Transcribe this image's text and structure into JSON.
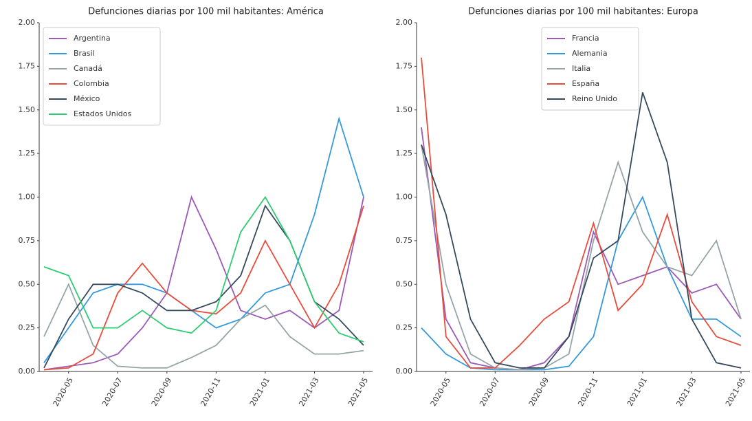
{
  "chart_data": [
    {
      "type": "line",
      "title": "Defunciones diarias por 100 mil habitantes: América",
      "legend": "upper left",
      "x": [
        "2020-04",
        "2020-05",
        "2020-06",
        "2020-07",
        "2020-08",
        "2020-09",
        "2020-10",
        "2020-11",
        "2020-12",
        "2021-01",
        "2021-02",
        "2021-03",
        "2021-04",
        "2021-05"
      ],
      "xticks": [
        "2020-05",
        "2020-07",
        "2020-09",
        "2020-11",
        "2021-01",
        "2021-03",
        "2021-05"
      ],
      "ylim": [
        0,
        2
      ],
      "yticks": [
        {
          "value": 0,
          "label": "0.00"
        },
        {
          "value": 0.25,
          "label": "0.25"
        },
        {
          "value": 0.5,
          "label": "0.50"
        },
        {
          "value": 0.75,
          "label": "0.75"
        },
        {
          "value": 1,
          "label": "1.00"
        },
        {
          "value": 1.25,
          "label": "1.25"
        },
        {
          "value": 1.5,
          "label": "1.50"
        },
        {
          "value": 1.75,
          "label": "1.75"
        },
        {
          "value": 2,
          "label": "2.00"
        }
      ],
      "series": [
        {
          "name": "Argentina",
          "color": "#9b59b6",
          "values": [
            0.01,
            0.03,
            0.05,
            0.1,
            0.25,
            0.45,
            1.0,
            0.7,
            0.35,
            0.3,
            0.35,
            0.25,
            0.35,
            1.0
          ]
        },
        {
          "name": "Brasil",
          "color": "#3498db",
          "values": [
            0.05,
            0.25,
            0.45,
            0.5,
            0.5,
            0.45,
            0.35,
            0.25,
            0.3,
            0.45,
            0.5,
            0.9,
            1.45,
            1.0
          ]
        },
        {
          "name": "Canadá",
          "color": "#95a5a6",
          "values": [
            0.2,
            0.5,
            0.15,
            0.03,
            0.02,
            0.02,
            0.08,
            0.15,
            0.3,
            0.38,
            0.2,
            0.1,
            0.1,
            0.12
          ]
        },
        {
          "name": "Colombia",
          "color": "#e74c3c",
          "values": [
            0.01,
            0.02,
            0.1,
            0.45,
            0.62,
            0.45,
            0.35,
            0.33,
            0.45,
            0.75,
            0.5,
            0.25,
            0.5,
            0.95
          ]
        },
        {
          "name": "México",
          "color": "#34495e",
          "values": [
            0.02,
            0.3,
            0.5,
            0.5,
            0.45,
            0.35,
            0.35,
            0.4,
            0.55,
            0.95,
            0.75,
            0.4,
            0.3,
            0.15
          ]
        },
        {
          "name": "Estados Unidos",
          "color": "#2ecc71",
          "values": [
            0.6,
            0.55,
            0.25,
            0.25,
            0.35,
            0.25,
            0.22,
            0.35,
            0.8,
            1.0,
            0.75,
            0.4,
            0.22,
            0.17
          ]
        }
      ]
    },
    {
      "type": "line",
      "title": "Defunciones diarias por 100 mil habitantes: Europa",
      "legend": "upper center",
      "x": [
        "2020-04",
        "2020-05",
        "2020-06",
        "2020-07",
        "2020-08",
        "2020-09",
        "2020-10",
        "2020-11",
        "2020-12",
        "2021-01",
        "2021-02",
        "2021-03",
        "2021-04",
        "2021-05"
      ],
      "xticks": [
        "2020-05",
        "2020-07",
        "2020-09",
        "2020-11",
        "2021-01",
        "2021-03",
        "2021-05"
      ],
      "ylim": [
        0,
        2
      ],
      "yticks": [
        {
          "value": 0,
          "label": "0.00"
        },
        {
          "value": 0.25,
          "label": "0.25"
        },
        {
          "value": 0.5,
          "label": "0.50"
        },
        {
          "value": 0.75,
          "label": "0.75"
        },
        {
          "value": 1,
          "label": "1.00"
        },
        {
          "value": 1.25,
          "label": "1.25"
        },
        {
          "value": 1.5,
          "label": "1.50"
        },
        {
          "value": 1.75,
          "label": "1.75"
        },
        {
          "value": 2,
          "label": "2.00"
        }
      ],
      "series": [
        {
          "name": "Francia",
          "color": "#9b59b6",
          "values": [
            1.4,
            0.3,
            0.05,
            0.02,
            0.01,
            0.05,
            0.2,
            0.8,
            0.5,
            0.55,
            0.6,
            0.45,
            0.5,
            0.3
          ]
        },
        {
          "name": "Alemania",
          "color": "#3498db",
          "values": [
            0.25,
            0.1,
            0.02,
            0.01,
            0.01,
            0.01,
            0.03,
            0.2,
            0.75,
            1.0,
            0.6,
            0.3,
            0.3,
            0.2
          ]
        },
        {
          "name": "Italia",
          "color": "#95a5a6",
          "values": [
            1.3,
            0.5,
            0.1,
            0.02,
            0.01,
            0.02,
            0.1,
            0.75,
            1.2,
            0.8,
            0.6,
            0.55,
            0.75,
            0.3
          ]
        },
        {
          "name": "España",
          "color": "#e74c3c",
          "values": [
            1.8,
            0.2,
            0.02,
            0.02,
            0.15,
            0.3,
            0.4,
            0.85,
            0.35,
            0.5,
            0.9,
            0.4,
            0.2,
            0.15
          ]
        },
        {
          "name": "Reino Unido",
          "color": "#34495e",
          "values": [
            1.3,
            0.9,
            0.3,
            0.05,
            0.02,
            0.02,
            0.2,
            0.65,
            0.75,
            1.6,
            1.2,
            0.3,
            0.05,
            0.02
          ]
        }
      ]
    }
  ]
}
